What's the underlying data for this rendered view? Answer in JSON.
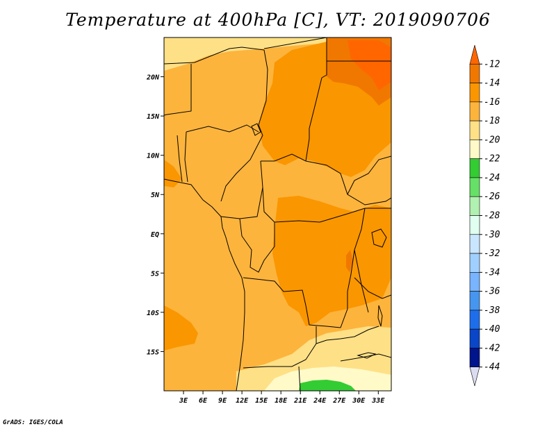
{
  "title": "Temperature at 400hPa [C], VT: 2019090706",
  "credit": "GrADS: IGES/COLA",
  "map": {
    "lon_range": [
      0,
      35
    ],
    "lat_range": [
      -20,
      25
    ],
    "x_ticks": [
      {
        "v": 3,
        "label": "3E"
      },
      {
        "v": 6,
        "label": "6E"
      },
      {
        "v": 9,
        "label": "9E"
      },
      {
        "v": 12,
        "label": "12E"
      },
      {
        "v": 15,
        "label": "15E"
      },
      {
        "v": 18,
        "label": "18E"
      },
      {
        "v": 21,
        "label": "21E"
      },
      {
        "v": 24,
        "label": "24E"
      },
      {
        "v": 27,
        "label": "27E"
      },
      {
        "v": 30,
        "label": "30E"
      },
      {
        "v": 33,
        "label": "33E"
      }
    ],
    "y_ticks": [
      {
        "v": 20,
        "label": "20N"
      },
      {
        "v": 15,
        "label": "15N"
      },
      {
        "v": 10,
        "label": "10N"
      },
      {
        "v": 5,
        "label": "5N"
      },
      {
        "v": 0,
        "label": "EQ"
      },
      {
        "v": -5,
        "label": "5S"
      },
      {
        "v": -10,
        "label": "10S"
      },
      {
        "v": -15,
        "label": "15S"
      }
    ]
  },
  "colorbar": {
    "labels": [
      "-12",
      "-14",
      "-16",
      "-18",
      "-20",
      "-22",
      "-24",
      "-26",
      "-28",
      "-30",
      "-32",
      "-34",
      "-36",
      "-38",
      "-40",
      "-42",
      "-44"
    ],
    "colors": [
      "#ff6600",
      "#f07800",
      "#fa9600",
      "#fdb43c",
      "#fee086",
      "#fffac8",
      "#33cc33",
      "#66e066",
      "#b0f0b0",
      "#e0fff0",
      "#c8e6ff",
      "#a0d0ff",
      "#78b4ff",
      "#4696f0",
      "#1e6eeb",
      "#0a46c8",
      "#00148c",
      "#dcdcf0"
    ]
  },
  "chart_data": {
    "type": "heatmap",
    "title": "Temperature at 400hPa [C], VT: 2019090706",
    "variable": "Temperature at 400hPa",
    "units": "C",
    "valid_time": "2019090706",
    "x_range_lon_E": [
      0,
      35
    ],
    "y_range_lat": [
      -20,
      25
    ],
    "contour_levels": [
      -44,
      -42,
      -40,
      -38,
      -36,
      -34,
      -32,
      -30,
      -28,
      -26,
      -24,
      -22,
      -20,
      -18,
      -16,
      -14,
      -12
    ],
    "observed_value_ranges": {
      "dominant": "-16 to -14",
      "warm_northeast_max": "-12 to -11",
      "cool_south_min": "-24 to -22"
    }
  }
}
